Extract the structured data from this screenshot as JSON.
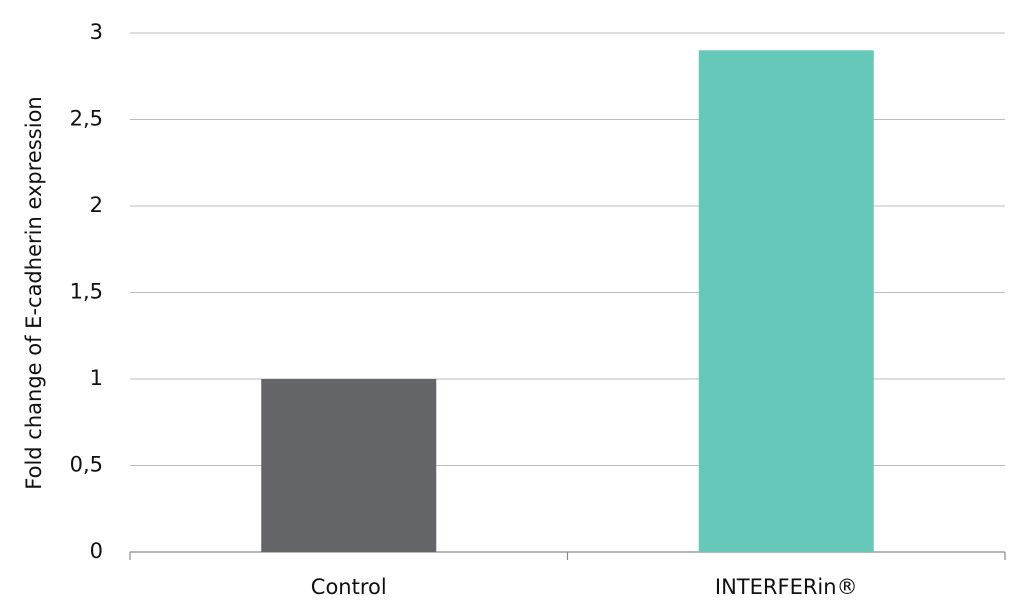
{
  "chart_data": {
    "type": "bar",
    "ylabel": "Fold change of E-cadherin expression",
    "categories": [
      "Control",
      "INTERFERin®"
    ],
    "values": [
      1,
      2.9
    ],
    "colors": [
      "#646569",
      "#66c8b8"
    ],
    "ylim": [
      0,
      3
    ],
    "yticks": [
      0,
      {
        "value": 0.5,
        "label": "0,5"
      },
      1,
      {
        "value": 1.5,
        "label": "1,5"
      },
      2,
      {
        "value": 2.5,
        "label": "2,5"
      },
      3
    ],
    "grid": true
  }
}
